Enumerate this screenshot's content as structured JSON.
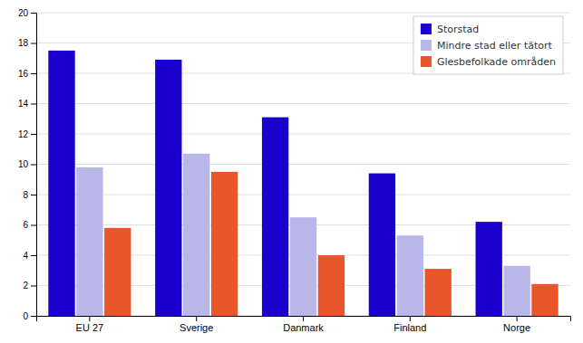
{
  "chart_data": {
    "type": "bar",
    "categories": [
      "EU 27",
      "Sverige",
      "Danmark",
      "Finland",
      "Norge"
    ],
    "series": [
      {
        "name": "Storstad",
        "color": "#1a00cc",
        "values": [
          17.5,
          16.9,
          13.1,
          9.4,
          6.2
        ]
      },
      {
        "name": "Mindre stad eller tätort",
        "color": "#b8b8e8",
        "values": [
          9.8,
          10.7,
          6.5,
          5.3,
          3.3
        ]
      },
      {
        "name": "Glesbefolkade områden",
        "color": "#e8562a",
        "values": [
          5.8,
          9.5,
          4.0,
          3.1,
          2.1
        ]
      }
    ],
    "ylim": [
      0,
      20
    ],
    "yticks": [
      0,
      2,
      4,
      6,
      8,
      10,
      12,
      14,
      16,
      18,
      20
    ],
    "grid": true,
    "legend": "upper right"
  }
}
